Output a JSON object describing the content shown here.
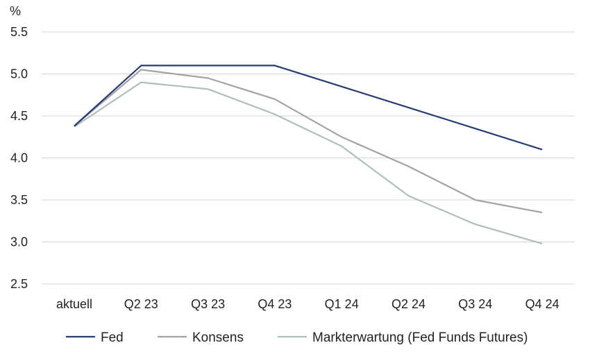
{
  "chart_data": {
    "type": "line",
    "ylabel": "%",
    "ylim": [
      2.5,
      5.5
    ],
    "yticks": [
      "5.5",
      "5.0",
      "4.5",
      "4.0",
      "3.5",
      "3.0",
      "2.5"
    ],
    "categories": [
      "aktuell",
      "Q2 23",
      "Q3 23",
      "Q4 23",
      "Q1 24",
      "Q2 24",
      "Q3 24",
      "Q4 24"
    ],
    "grid": true,
    "legend_position": "bottom",
    "series": [
      {
        "name": "Fed",
        "color": "#263a74",
        "values": [
          4.38,
          5.1,
          5.1,
          5.1,
          4.85,
          4.6,
          4.35,
          4.1
        ]
      },
      {
        "name": "Konsens",
        "color": "#a3a3a3",
        "values": [
          4.38,
          5.05,
          4.95,
          4.7,
          4.25,
          3.9,
          3.5,
          3.35
        ]
      },
      {
        "name": "Markterwartung (Fed Funds Futures)",
        "color": "#aebfba",
        "values": [
          4.37,
          4.9,
          4.82,
          4.52,
          4.14,
          3.55,
          3.21,
          2.98
        ]
      }
    ]
  }
}
